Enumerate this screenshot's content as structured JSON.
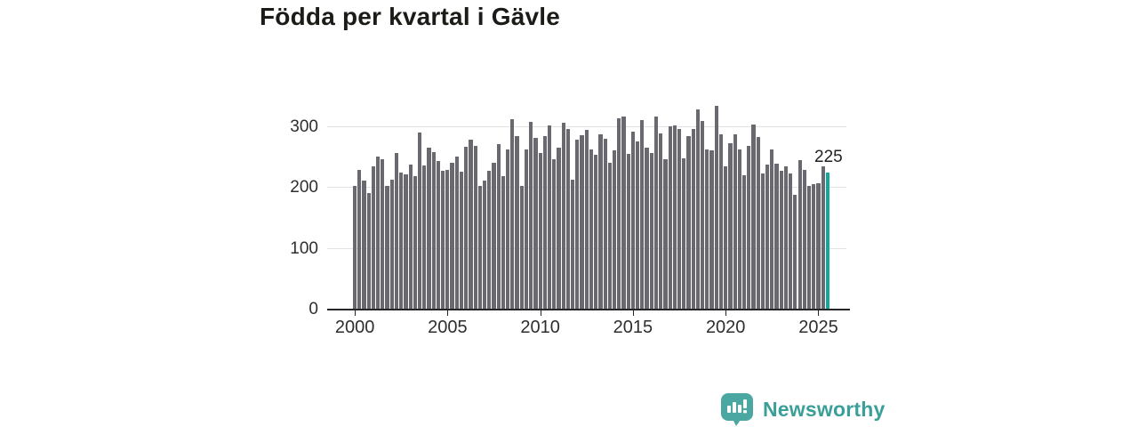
{
  "title": "Födda per kvartal i Gävle",
  "chart_data": {
    "type": "bar",
    "title": "Födda per kvartal i Gävle",
    "xlabel": "",
    "ylabel": "",
    "x_unit": "quarter",
    "x_start": "2000-Q1",
    "x_end": "2025-Q3",
    "values": [
      204,
      230,
      212,
      191,
      235,
      251,
      248,
      203,
      214,
      258,
      225,
      223,
      239,
      220,
      291,
      237,
      267,
      259,
      245,
      228,
      230,
      242,
      252,
      227,
      268,
      280,
      269,
      204,
      212,
      229,
      242,
      272,
      220,
      264,
      313,
      285,
      204,
      263,
      309,
      283,
      257,
      285,
      303,
      247,
      267,
      308,
      297,
      213,
      279,
      287,
      295,
      263,
      255,
      288,
      281,
      241,
      262,
      314,
      318,
      256,
      293,
      277,
      312,
      267,
      257,
      317,
      290,
      247,
      302,
      303,
      297,
      249,
      286,
      297,
      329,
      310,
      263,
      262,
      335,
      288,
      235,
      274,
      288,
      263,
      221,
      269,
      305,
      284,
      224,
      238,
      264,
      240,
      228,
      235,
      224,
      189,
      246,
      230,
      203,
      206,
      208,
      236,
      225
    ],
    "y_ticks": [
      0,
      100,
      200,
      300
    ],
    "ylim": [
      0,
      363
    ],
    "x_tick_years": [
      2000,
      2005,
      2010,
      2015,
      2020,
      2025
    ],
    "grid": "horizontal",
    "legend": "none",
    "bar_color": "#69696f",
    "highlight_color": "#14a79e",
    "highlight": {
      "index_from_end": 1,
      "label": "225",
      "value": 225
    }
  },
  "annotation": {
    "last_value_label": "225"
  },
  "axis": {
    "y_labels": [
      "300",
      "200",
      "100",
      "0"
    ],
    "x_labels": [
      "2000",
      "2005",
      "2010",
      "2015",
      "2020",
      "2025"
    ]
  },
  "branding": {
    "name": "Newsworthy",
    "logo_color": "#4aa7a1",
    "text_color": "#3a9e99"
  },
  "colors": {
    "background": "#ffffff",
    "title_text": "#1b1c18",
    "axis_line": "#26262a",
    "gridline": "#e3e3e5",
    "tick_text": "#2e2e30"
  }
}
